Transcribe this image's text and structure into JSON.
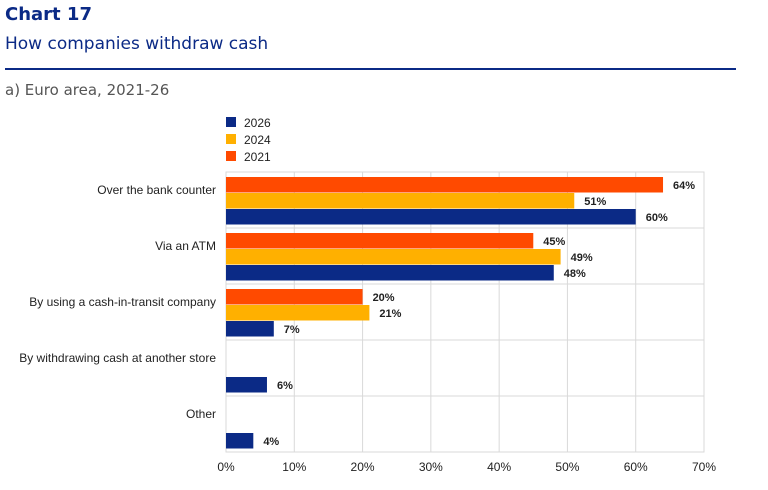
{
  "header": {
    "chart_number": "Chart 17",
    "title": "How companies withdraw cash",
    "panel_title": "a) Euro area, 2021-26"
  },
  "colors": {
    "2026": "#0b2a86",
    "2024": "#ffb000",
    "2021": "#ff4a00",
    "grid": "#d9d9d9",
    "title": "#0b2a86"
  },
  "chart_data": {
    "type": "bar",
    "orientation": "horizontal",
    "categories": [
      "Over the bank counter",
      "Via an ATM",
      "By using a cash-in-transit company",
      "By withdrawing cash at another store",
      "Other"
    ],
    "series": [
      {
        "name": "2021",
        "values": [
          64,
          45,
          20,
          null,
          null
        ]
      },
      {
        "name": "2024",
        "values": [
          51,
          49,
          21,
          null,
          null
        ]
      },
      {
        "name": "2026",
        "values": [
          60,
          48,
          7,
          6,
          4
        ]
      }
    ],
    "legend": [
      "2026",
      "2024",
      "2021"
    ],
    "legend_position": "top-left",
    "xlim": [
      0,
      70
    ],
    "xticks": [
      0,
      10,
      20,
      30,
      40,
      50,
      60,
      70
    ],
    "tick_format": "%",
    "value_suffix": "%",
    "grid": true
  }
}
